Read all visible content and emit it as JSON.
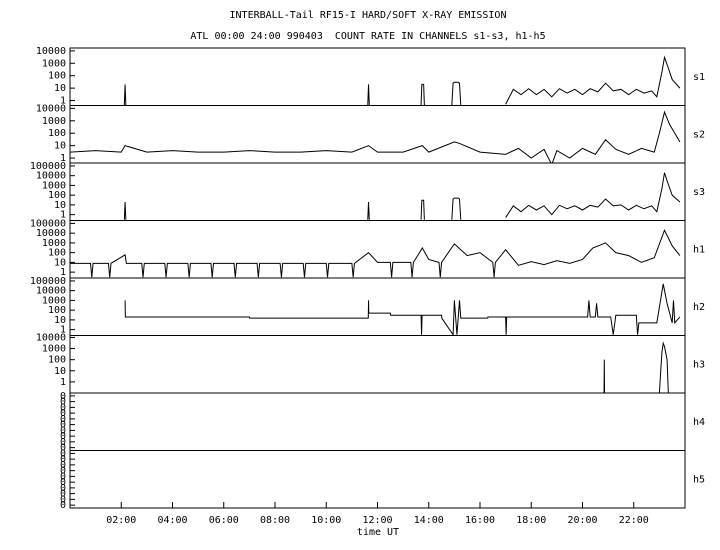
{
  "chart_data": {
    "type": "line",
    "title": "INTERBALL-Tail RF15-I HARD/SOFT X-RAY EMISSION",
    "subtitle": "ATL 00:00 24:00 990403  COUNT RATE IN CHANNELS s1-s3, h1-h5",
    "xlabel": "time UT",
    "xlim": [
      0,
      24
    ],
    "xticks": [
      {
        "value": 2,
        "label": "02:00"
      },
      {
        "value": 4,
        "label": "04:00"
      },
      {
        "value": 6,
        "label": "06:00"
      },
      {
        "value": 8,
        "label": "08:00"
      },
      {
        "value": 10,
        "label": "10:00"
      },
      {
        "value": 12,
        "label": "12:00"
      },
      {
        "value": 14,
        "label": "14:00"
      },
      {
        "value": 16,
        "label": "16:00"
      },
      {
        "value": 18,
        "label": "18:00"
      },
      {
        "value": 20,
        "label": "20:00"
      },
      {
        "value": 22,
        "label": "22:00"
      }
    ],
    "color": "#000000",
    "panels": [
      {
        "name": "s1",
        "log": true,
        "ylim": [
          0.4,
          17000
        ],
        "yticks": [
          1,
          10,
          100,
          1000,
          10000
        ],
        "x": [
          2.12,
          2.15,
          2.18,
          5,
          11.62,
          11.65,
          11.68,
          12,
          13.7,
          13.73,
          13.8,
          13.83,
          14,
          14.9,
          14.95,
          15.0,
          15.15,
          15.2,
          15.25,
          16,
          17.0,
          17.3,
          17.6,
          17.9,
          18.2,
          18.5,
          18.8,
          19.1,
          19.4,
          19.7,
          20.0,
          20.3,
          20.6,
          20.9,
          21.2,
          21.5,
          21.8,
          22.1,
          22.4,
          22.7,
          22.9,
          23.1,
          23.2,
          23.3,
          23.5,
          23.8
        ],
        "values": [
          0.4,
          20,
          0.4,
          null,
          0.4,
          20,
          0.4,
          null,
          0.4,
          20,
          20,
          0.4,
          null,
          0.4,
          25,
          30,
          30,
          25,
          0.4,
          null,
          0.5,
          8,
          3,
          9,
          3,
          8,
          2,
          9,
          4,
          8,
          3,
          9,
          5,
          25,
          6,
          8,
          3,
          8,
          4,
          6,
          2,
          200,
          3000,
          800,
          50,
          10
        ]
      },
      {
        "name": "s2",
        "log": true,
        "ylim": [
          0.4,
          17000
        ],
        "yticks": [
          1,
          10,
          100,
          1000,
          10000
        ],
        "x": [
          0,
          1,
          2,
          2.15,
          3,
          4,
          5,
          6,
          7,
          8,
          9,
          10,
          11,
          11.65,
          12,
          13,
          13.75,
          14,
          15,
          15.2,
          16,
          17,
          17.5,
          18,
          18.5,
          18.8,
          19,
          19.5,
          20,
          20.5,
          20.9,
          21.3,
          21.8,
          22.3,
          22.8,
          23.0,
          23.2,
          23.4,
          23.8
        ],
        "values": [
          3,
          4,
          3,
          10,
          3,
          4,
          3,
          3,
          4,
          3,
          3,
          4,
          3,
          10,
          3,
          3,
          10,
          3,
          20,
          15,
          3,
          2,
          6,
          1,
          5,
          0.3,
          4,
          1,
          6,
          2,
          30,
          5,
          2,
          6,
          3,
          100,
          5000,
          500,
          20
        ]
      },
      {
        "name": "s3",
        "log": true,
        "ylim": [
          0.25,
          200000
        ],
        "yticks": [
          1,
          10,
          100,
          1000,
          10000,
          100000
        ],
        "x": [
          2.12,
          2.15,
          2.18,
          5,
          11.62,
          11.65,
          11.68,
          12,
          13.7,
          13.73,
          13.8,
          13.83,
          14,
          14.9,
          14.95,
          15.0,
          15.15,
          15.2,
          15.25,
          16,
          17.0,
          17.3,
          17.6,
          17.9,
          18.2,
          18.5,
          18.8,
          19.1,
          19.4,
          19.7,
          20.0,
          20.3,
          20.6,
          20.9,
          21.2,
          21.5,
          21.8,
          22.1,
          22.4,
          22.7,
          22.9,
          23.1,
          23.2,
          23.3,
          23.5,
          23.8
        ],
        "values": [
          0.3,
          20,
          0.3,
          null,
          0.3,
          20,
          0.3,
          null,
          0.3,
          30,
          30,
          0.3,
          null,
          0.3,
          40,
          50,
          50,
          40,
          0.3,
          null,
          0.5,
          8,
          2,
          9,
          3,
          8,
          1,
          9,
          4,
          8,
          3,
          9,
          6,
          40,
          8,
          10,
          3,
          9,
          4,
          8,
          2,
          500,
          20000,
          3000,
          100,
          20
        ]
      },
      {
        "name": "h1",
        "log": true,
        "ylim": [
          0.25,
          200000
        ],
        "yticks": [
          1,
          10,
          100,
          1000,
          10000,
          100000
        ],
        "x": [
          0,
          0.8,
          0.85,
          0.9,
          1.5,
          1.55,
          1.6,
          2.15,
          2.2,
          2.8,
          2.85,
          2.9,
          3.7,
          3.75,
          3.8,
          4.6,
          4.65,
          4.7,
          5.5,
          5.55,
          5.6,
          6.4,
          6.45,
          6.5,
          7.3,
          7.35,
          7.4,
          8.2,
          8.25,
          8.3,
          9.1,
          9.15,
          9.2,
          10,
          10.05,
          10.1,
          11,
          11.05,
          11.1,
          11.65,
          12,
          12.5,
          12.55,
          12.6,
          13.3,
          13.35,
          13.4,
          13.75,
          14,
          14.4,
          14.45,
          14.5,
          15,
          15.5,
          16,
          16.5,
          16.55,
          16.6,
          17,
          17.5,
          18,
          18.5,
          19,
          19.5,
          20,
          20.4,
          20.9,
          21.3,
          21.8,
          22.3,
          22.8,
          23.2,
          23.5,
          23.8
        ],
        "values": [
          8,
          8,
          0.3,
          8,
          8,
          0.3,
          8,
          60,
          8,
          8,
          0.3,
          8,
          8,
          0.3,
          8,
          8,
          0.3,
          8,
          8,
          0.3,
          8,
          8,
          0.3,
          8,
          8,
          0.3,
          8,
          8,
          0.3,
          8,
          8,
          0.3,
          8,
          8,
          0.3,
          8,
          8,
          0.3,
          8,
          100,
          10,
          10,
          0.3,
          10,
          10,
          0.3,
          10,
          300,
          20,
          10,
          0.3,
          10,
          800,
          50,
          100,
          10,
          0.3,
          10,
          200,
          5,
          12,
          6,
          15,
          8,
          20,
          300,
          1000,
          100,
          50,
          10,
          30,
          20000,
          500,
          50
        ]
      },
      {
        "name": "h2",
        "log": true,
        "ylim": [
          0.25,
          200000
        ],
        "yticks": [
          1,
          10,
          100,
          1000,
          10000,
          100000
        ],
        "x": [
          2.15,
          2.16,
          7,
          7.01,
          11.64,
          11.65,
          11.66,
          12.5,
          12.51,
          13.7,
          13.72,
          13.74,
          14.5,
          14.51,
          14.95,
          15.0,
          15.1,
          15.2,
          15.25,
          16.3,
          16.31,
          17.0,
          17.02,
          17.04,
          20.2,
          20.25,
          20.3,
          20.5,
          20.55,
          20.6,
          21.1,
          21.2,
          21.3,
          22.1,
          22.15,
          22.2,
          22.9,
          23.15,
          23.3,
          23.5,
          23.55,
          23.6,
          23.8
        ],
        "values": [
          1000,
          20,
          20,
          15,
          15,
          1000,
          50,
          50,
          30,
          30,
          0.3,
          30,
          30,
          15,
          0.3,
          1000,
          0.3,
          1000,
          15,
          15,
          20,
          20,
          0.3,
          20,
          20,
          1000,
          20,
          20,
          500,
          20,
          20,
          0.3,
          30,
          30,
          0.3,
          5,
          5,
          50000,
          500,
          5,
          1000,
          5,
          20
        ]
      },
      {
        "name": "h3",
        "log": true,
        "ylim": [
          0.1,
          15000
        ],
        "yticks": [
          1,
          10,
          100,
          1000,
          10000
        ],
        "x": [
          20.84,
          20.85,
          20.86,
          21,
          23.0,
          23.1,
          23.15,
          23.2,
          23.3,
          23.35
        ],
        "values": [
          0.1,
          100,
          0.1,
          null,
          0.1,
          500,
          3000,
          1500,
          100,
          0.1
        ]
      },
      {
        "name": "h4",
        "log": false,
        "ylim": [
          0,
          1
        ],
        "yticks": [
          {
            "value": 0.05,
            "label": "0"
          },
          {
            "value": 0.15,
            "label": "0"
          },
          {
            "value": 0.25,
            "label": "0"
          },
          {
            "value": 0.35,
            "label": "0"
          },
          {
            "value": 0.45,
            "label": "0"
          },
          {
            "value": 0.55,
            "label": "0"
          },
          {
            "value": 0.65,
            "label": "0"
          },
          {
            "value": 0.75,
            "label": "0"
          },
          {
            "value": 0.85,
            "label": "0"
          },
          {
            "value": 0.95,
            "label": "0"
          }
        ]
      },
      {
        "name": "h5",
        "log": false,
        "ylim": [
          0,
          1
        ],
        "yticks": [
          {
            "value": 0.05,
            "label": "0"
          },
          {
            "value": 0.15,
            "label": "0"
          },
          {
            "value": 0.25,
            "label": "0"
          },
          {
            "value": 0.35,
            "label": "0"
          },
          {
            "value": 0.45,
            "label": "0"
          },
          {
            "value": 0.55,
            "label": "0"
          },
          {
            "value": 0.65,
            "label": "0"
          },
          {
            "value": 0.75,
            "label": "0"
          },
          {
            "value": 0.85,
            "label": "0"
          },
          {
            "value": 0.95,
            "label": "0"
          }
        ]
      }
    ]
  }
}
